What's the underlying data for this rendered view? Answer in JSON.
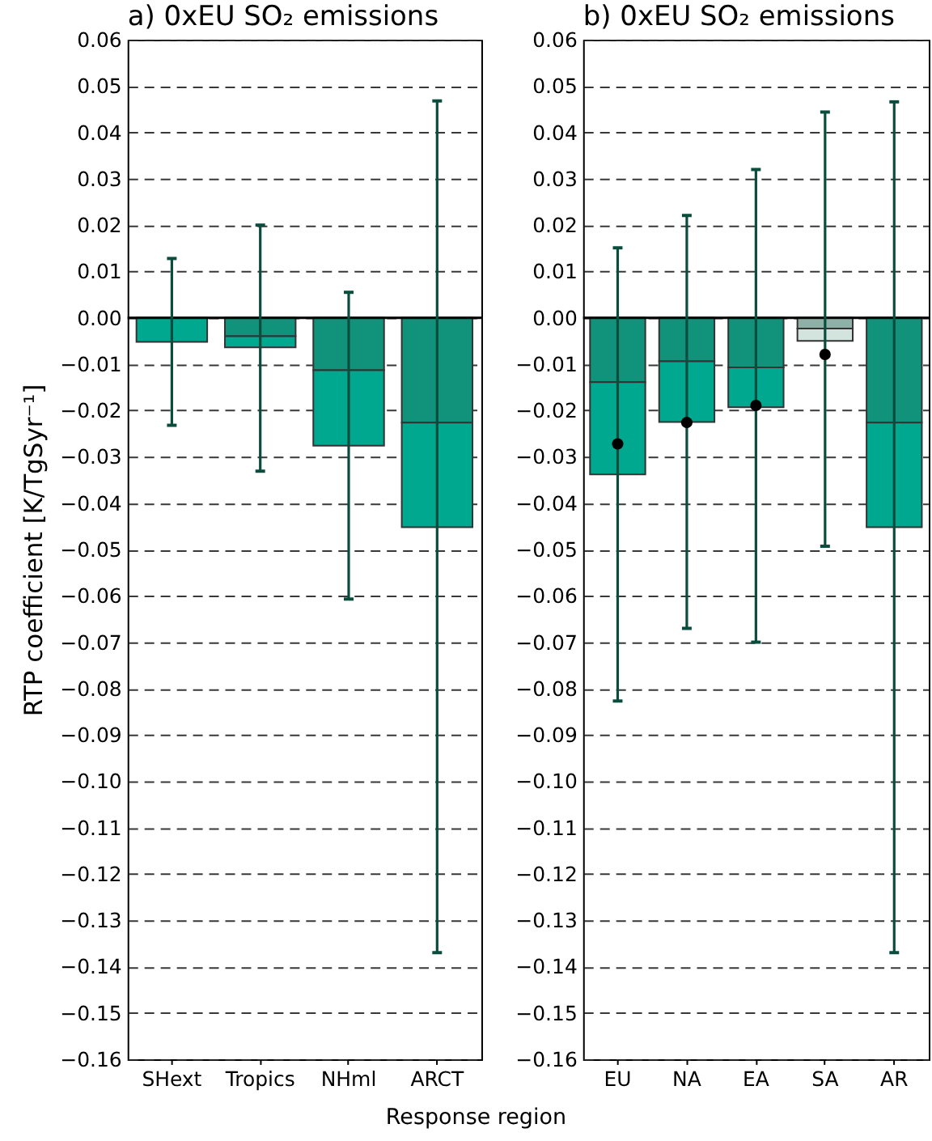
{
  "chart_data": [
    {
      "type": "bar",
      "title": "a) 0xEU SO₂ emissions",
      "ylabel": "RTP coefficient [K/TgSyr⁻¹]",
      "xlabel": "Response region",
      "categories": [
        "SHext",
        "Tropics",
        "NHml",
        "ARCT"
      ],
      "stacked": true,
      "series": [
        {
          "color": "#11927a",
          "values": [
            null,
            -0.004,
            -0.0113,
            -0.0226
          ]
        },
        {
          "color": "#00a88f",
          "values": [
            -0.0052,
            -0.0024,
            -0.0163,
            -0.0226
          ],
          "errors": [
            [
              -0.0232,
              0.0128
            ],
            [
              -0.0331,
              0.02
            ],
            [
              -0.0607,
              0.0055
            ],
            [
              -0.137,
              0.0468
            ]
          ]
        }
      ],
      "ylim": [
        -0.16,
        0.06
      ],
      "yticks": [
        {
          "value": -0.16,
          "label": "−0.16"
        },
        {
          "value": -0.15,
          "label": "−0.15"
        },
        {
          "value": -0.14,
          "label": "−0.14"
        },
        {
          "value": -0.13,
          "label": "−0.13"
        },
        {
          "value": -0.12,
          "label": "−0.12"
        },
        {
          "value": -0.11,
          "label": "−0.11"
        },
        {
          "value": -0.1,
          "label": "−0.10"
        },
        {
          "value": -0.09,
          "label": "−0.09"
        },
        {
          "value": -0.08,
          "label": "−0.08"
        },
        {
          "value": -0.07,
          "label": "−0.07"
        },
        {
          "value": -0.06,
          "label": "−0.06"
        },
        {
          "value": -0.05,
          "label": "−0.05"
        },
        {
          "value": -0.04,
          "label": "−0.04"
        },
        {
          "value": -0.03,
          "label": "−0.03"
        },
        {
          "value": -0.02,
          "label": "−0.02"
        },
        {
          "value": -0.01,
          "label": "−0.01"
        },
        {
          "value": 0,
          "label": "0.00"
        },
        0.01,
        0.02,
        0.03,
        0.04,
        0.05,
        0.06
      ],
      "grid": "y",
      "ref_lines": [
        {
          "axis": "y",
          "value": 0,
          "color": "#000000",
          "line_style": "solid"
        }
      ]
    },
    {
      "type": "bar",
      "title": "b) 0xEU SO₂ emissions",
      "categories": [
        "EU",
        "NA",
        "EA",
        "SA",
        "AR"
      ],
      "stacked": true,
      "series": [
        {
          "colors": [
            "#11927a",
            "#11927a",
            "#11927a",
            "#8fb0a6",
            "#11927a"
          ],
          "values": [
            -0.0139,
            -0.0094,
            -0.0107,
            -0.0023,
            -0.0226
          ]
        },
        {
          "colors": [
            "#00a88f",
            "#00a88f",
            "#00a88f",
            "#d3e3de",
            "#00a88f"
          ],
          "values": [
            -0.0199,
            -0.0131,
            -0.0086,
            -0.0027,
            -0.0226
          ],
          "errors": [
            [
              -0.0827,
              0.0151
            ],
            [
              -0.067,
              0.0221
            ],
            [
              -0.07,
              0.032
            ],
            [
              -0.0493,
              0.0444
            ],
            [
              -0.137,
              0.0466
            ]
          ]
        },
        {
          "type": "scatter",
          "color": "#000000",
          "x": [
            "EU",
            "NA",
            "EA",
            "SA"
          ],
          "values": [
            -0.0272,
            -0.0226,
            -0.0189,
            -0.0079
          ]
        }
      ],
      "marker": "circle",
      "ylim": [
        -0.16,
        0.06
      ],
      "yticks": [
        {
          "value": -0.16,
          "label": "−0.16"
        },
        {
          "value": -0.15,
          "label": "−0.15"
        },
        {
          "value": -0.14,
          "label": "−0.14"
        },
        {
          "value": -0.13,
          "label": "−0.13"
        },
        {
          "value": -0.12,
          "label": "−0.12"
        },
        {
          "value": -0.11,
          "label": "−0.11"
        },
        {
          "value": -0.1,
          "label": "−0.10"
        },
        {
          "value": -0.09,
          "label": "−0.09"
        },
        {
          "value": -0.08,
          "label": "−0.08"
        },
        {
          "value": -0.07,
          "label": "−0.07"
        },
        {
          "value": -0.06,
          "label": "−0.06"
        },
        {
          "value": -0.05,
          "label": "−0.05"
        },
        {
          "value": -0.04,
          "label": "−0.04"
        },
        {
          "value": -0.03,
          "label": "−0.03"
        },
        {
          "value": -0.02,
          "label": "−0.02"
        },
        {
          "value": -0.01,
          "label": "−0.01"
        },
        {
          "value": 0,
          "label": "0.00"
        },
        0.01,
        0.02,
        0.03,
        0.04,
        0.05,
        0.06
      ],
      "grid": "y",
      "ref_lines": [
        {
          "axis": "y",
          "value": 0,
          "color": "#000000",
          "line_style": "solid"
        }
      ]
    }
  ]
}
